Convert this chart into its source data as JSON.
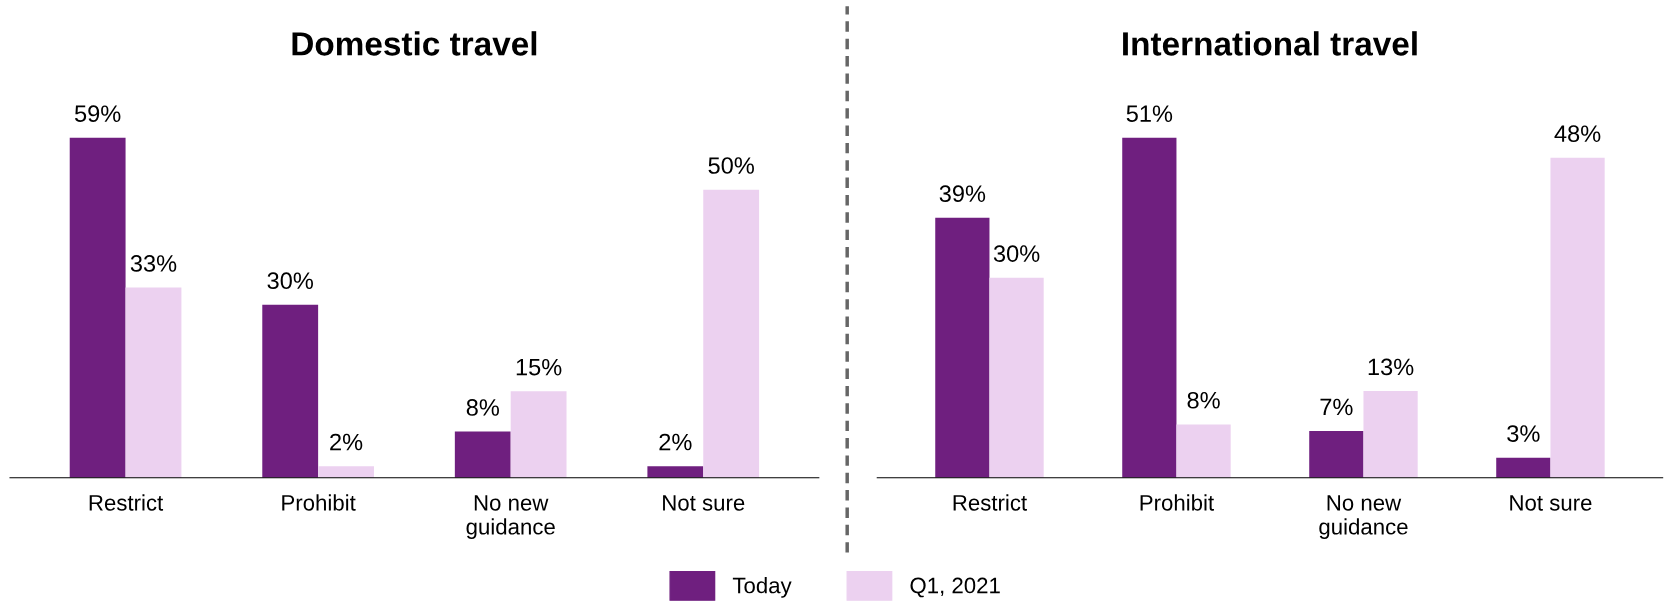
{
  "chart_data": [
    {
      "type": "bar",
      "title": "Domestic travel",
      "categories": [
        "Restrict",
        "Prohibit",
        "No new\nguidance",
        "Not sure"
      ],
      "series": [
        {
          "name": "Today",
          "color": "#6f1f7f",
          "values": [
            59,
            30,
            8,
            2
          ],
          "value_labels": [
            "59%",
            "30%",
            "8%",
            "2%"
          ]
        },
        {
          "name": "Q1, 2021",
          "color": "#ecd1f0",
          "values": [
            33,
            2,
            15,
            50
          ],
          "value_labels": [
            "33%",
            "2%",
            "15%",
            "50%"
          ]
        }
      ],
      "legend": "bottom"
    },
    {
      "type": "bar",
      "title": "International travel",
      "categories": [
        "Restrict",
        "Prohibit",
        "No new\nguidance",
        "Not sure"
      ],
      "series": [
        {
          "color": "#6f1f7f",
          "values": [
            39,
            51,
            7,
            3
          ],
          "value_labels": [
            "39%",
            "51%",
            "7%",
            "3%"
          ]
        },
        {
          "color": "#ecd1f0",
          "values": [
            30,
            8,
            13,
            48
          ],
          "value_labels": [
            "30%",
            "8%",
            "13%",
            "48%"
          ]
        }
      ]
    }
  ]
}
